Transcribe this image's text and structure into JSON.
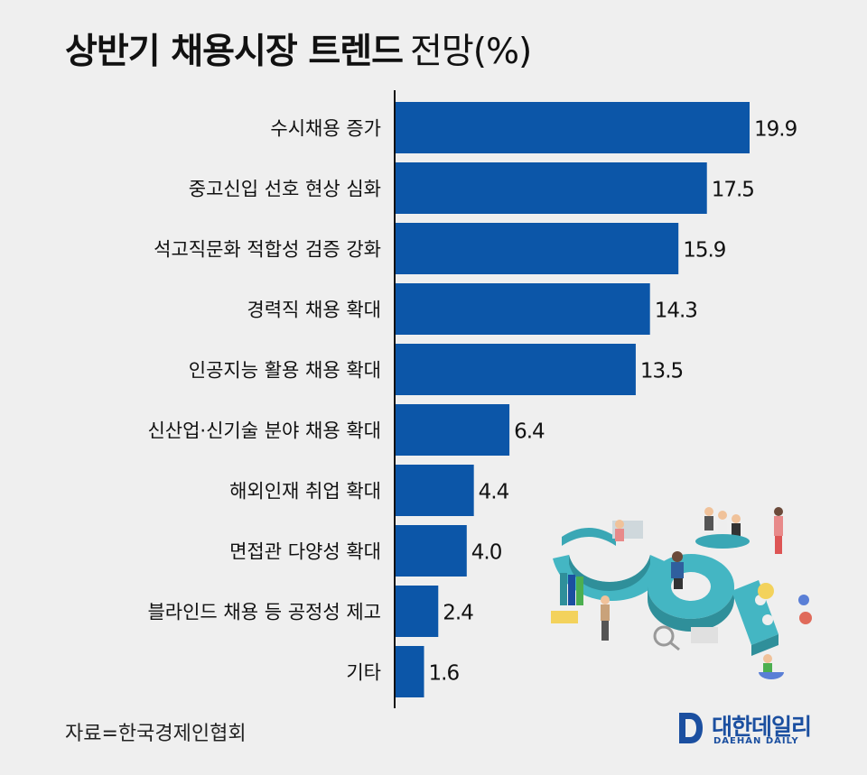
{
  "header": {
    "title": "상반기 채용시장 트렌드",
    "subtitle": "전망(%)"
  },
  "source": "자료=한국경제인협회",
  "brand": {
    "name_ko": "대한데일리",
    "name_en": "DAEHAN DAILY",
    "color": "#1b4fa0"
  },
  "illustration": {
    "icon": "job-isometric-illustration",
    "text": "JOB"
  },
  "chart_data": {
    "type": "bar",
    "orientation": "horizontal",
    "bar_color": "#0c56a8",
    "categories": [
      "수시채용 증가",
      "중고신입 선호 현상 심화",
      "석고직문화 적합성 검증 강화",
      "경력직 채용 확대",
      "인공지능 활용 채용 확대",
      "신산업·신기술 분야 채용 확대",
      "해외인재 취업 확대",
      "면접관 다양성 확대",
      "블라인드 채용 등 공정성 제고",
      "기타"
    ],
    "values": [
      19.9,
      17.5,
      15.9,
      14.3,
      13.5,
      6.4,
      4.4,
      4.0,
      2.4,
      1.6
    ],
    "value_labels": [
      "19.9",
      "17.5",
      "15.9",
      "14.3",
      "13.5",
      "6.4",
      "4.4",
      "4.0",
      "2.4",
      "1.6"
    ],
    "xlim": [
      0,
      20
    ],
    "grid": false,
    "legend": "none"
  }
}
